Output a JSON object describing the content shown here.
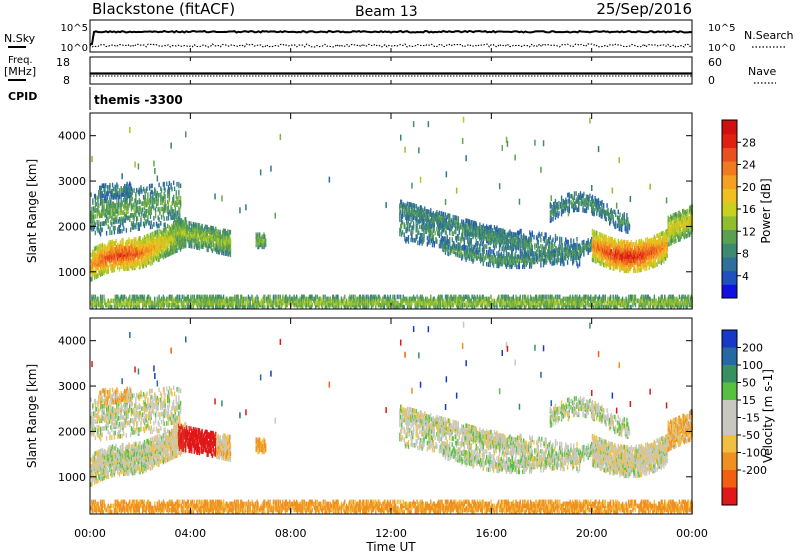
{
  "header": {
    "station": "Blackstone (fitACF)",
    "beam": "Beam 13",
    "date": "25/Sep/2016",
    "cpid_label": "CPID",
    "cpid_value": "themis -3300"
  },
  "noise_panel": {
    "left_label": "N.Sky",
    "right_label": "N.Search",
    "left_tick_top": "10^5",
    "left_tick_bottom": "10^0",
    "right_tick_top": "10^5",
    "right_tick_bottom": "10^0"
  },
  "freq_panel": {
    "left_label_1": "Freq.",
    "left_label_2": "[MHz]",
    "right_label": "Nave",
    "left_tick_top": "18",
    "left_tick_bottom": "8",
    "right_tick_top": "60",
    "right_tick_bottom": "0"
  },
  "x_axis": {
    "label": "Time UT",
    "ticks": [
      "00:00",
      "04:00",
      "08:00",
      "12:00",
      "16:00",
      "20:00",
      "00:00"
    ],
    "range_hours": [
      0,
      24
    ]
  },
  "chart_data": [
    {
      "type": "heatmap",
      "name": "power",
      "ylabel": "Slant Range [km]",
      "ylim": [
        180,
        4500
      ],
      "yticks": [
        1000,
        2000,
        3000,
        4000
      ],
      "colorbar_label": "Power [dB]",
      "colorbar_ticks": [
        4,
        8,
        12,
        16,
        20,
        24,
        28
      ],
      "colorbar_range": [
        0,
        32
      ],
      "colorbar_colors": [
        "#1010e0",
        "#2050c0",
        "#2f6f9a",
        "#3d8a70",
        "#5aa050",
        "#8fbf30",
        "#c8d020",
        "#f0c020",
        "#f5a020",
        "#f07a20",
        "#e85020",
        "#e02010",
        "#d01010"
      ],
      "colormap": "power"
    },
    {
      "type": "heatmap",
      "name": "velocity",
      "ylabel": "Slant Range [km]",
      "ylim": [
        180,
        4500
      ],
      "yticks": [
        1000,
        2000,
        3000,
        4000
      ],
      "colorbar_label": "Velocity [m s-1]",
      "colorbar_ticks": [
        200,
        100,
        50,
        15,
        -15,
        -50,
        -100,
        -200
      ],
      "colorbar_colors": [
        "#1838c8",
        "#2868a0",
        "#389060",
        "#58c040",
        "#c8c8c0",
        "#c8c8c0",
        "#f0c040",
        "#f09020",
        "#f06010",
        "#e01818"
      ],
      "colormap": "velocity"
    }
  ]
}
